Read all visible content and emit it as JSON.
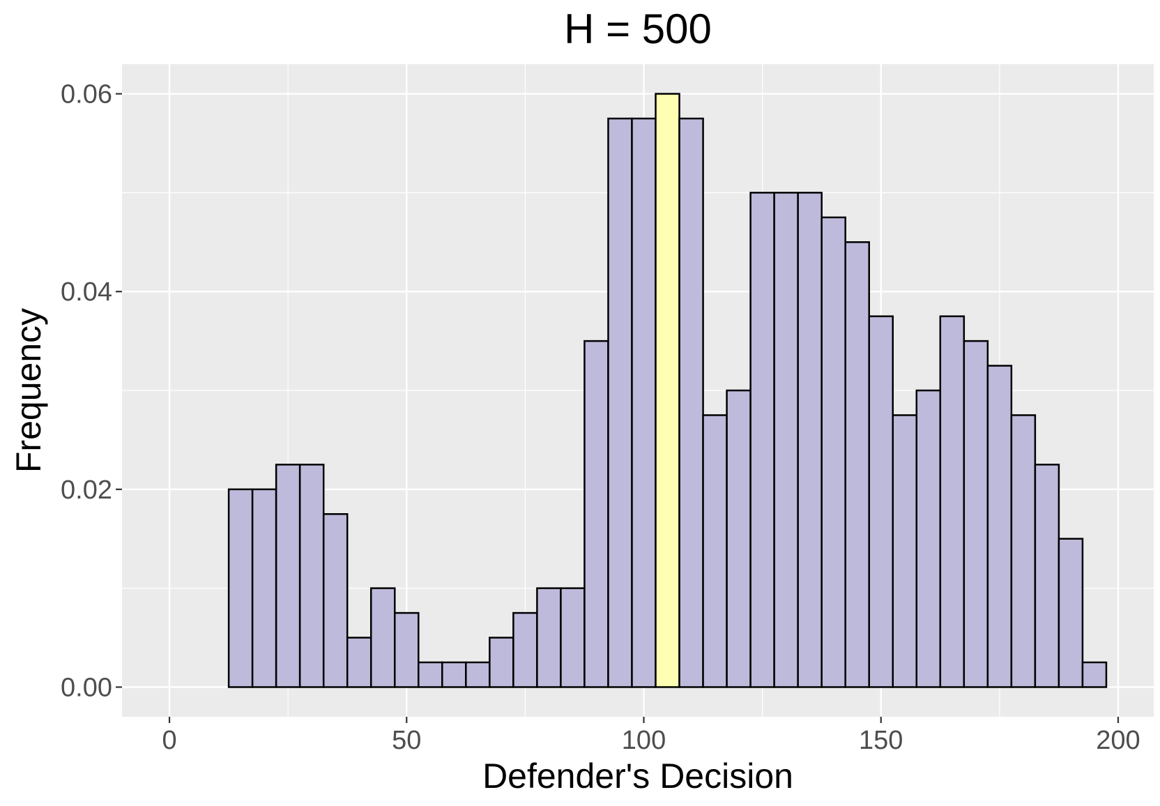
{
  "chart_data": {
    "type": "bar",
    "title": "H = 500",
    "xlabel": "Defender's Decision",
    "ylabel": "Frequency",
    "xlim": [
      -10,
      207.5
    ],
    "ylim": [
      -0.003,
      0.063
    ],
    "x_ticks": [
      0,
      50,
      100,
      150,
      200
    ],
    "x_tick_labels": [
      "0",
      "50",
      "100",
      "150",
      "200"
    ],
    "y_ticks": [
      0,
      0.02,
      0.04,
      0.06
    ],
    "y_tick_labels": [
      "0.00",
      "0.02",
      "0.04",
      "0.06"
    ],
    "grid": true,
    "bin_width": 5,
    "bin_centers": [
      5,
      10,
      15,
      20,
      25,
      30,
      35,
      40,
      45,
      50,
      55,
      60,
      65,
      70,
      75,
      80,
      85,
      90,
      95,
      100,
      105,
      110,
      115,
      120,
      125,
      130,
      135,
      140,
      145,
      150,
      155,
      160,
      165,
      170,
      175,
      180,
      185,
      190,
      195
    ],
    "values": [
      0.0,
      0.0,
      0.02,
      0.02,
      0.0225,
      0.0225,
      0.0175,
      0.005,
      0.01,
      0.0075,
      0.0025,
      0.0025,
      0.0025,
      0.005,
      0.0075,
      0.01,
      0.01,
      0.035,
      0.0575,
      0.0575,
      0.06,
      0.0575,
      0.0275,
      0.03,
      0.05,
      0.05,
      0.05,
      0.0475,
      0.045,
      0.0375,
      0.0275,
      0.03,
      0.0375,
      0.035,
      0.0325,
      0.0275,
      0.0225,
      0.015,
      0.0025
    ],
    "highlight_index": 20,
    "colors": {
      "bar_fill": "#bebadb",
      "highlight_fill": "#ffffb3",
      "bar_stroke": "#000000",
      "panel_background": "#ebebeb",
      "grid_major": "#ffffff",
      "tick_text": "#4d4d4d"
    }
  }
}
